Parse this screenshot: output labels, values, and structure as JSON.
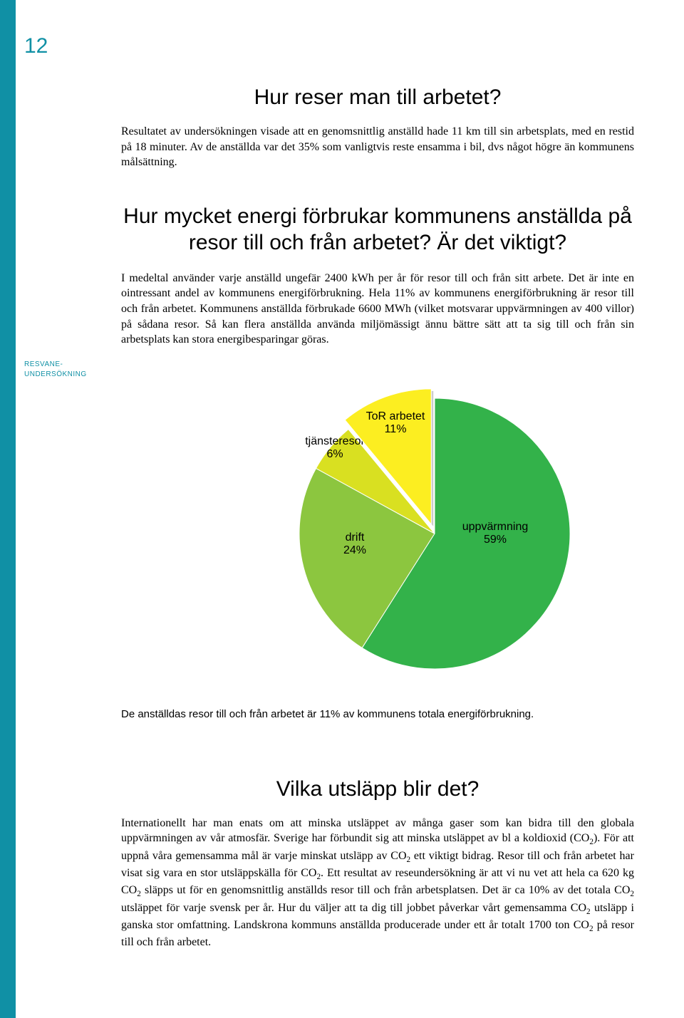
{
  "page_number": "12",
  "sidebar_label_line1": "RESVANE-",
  "sidebar_label_line2": "UNDERSÖKNING",
  "heading1": "Hur reser man till arbetet?",
  "para1": "Resultatet av undersökningen visade att en genomsnittlig anställd hade 11 km till sin arbetsplats, med en restid på 18 minuter. Av de anställda var det 35% som vanligtvis reste ensamma i bil, dvs något högre än kommunens målsättning.",
  "heading2": "Hur mycket energi förbrukar kommunens anställda på resor till och från arbetet? Är det viktigt?",
  "para2": "I medeltal använder varje anställd ungefär 2400 kWh per år för resor till och från sitt arbete. Det är inte en ointressant andel av kommunens energiförbrukning. Hela 11% av kommunens energiförbrukning är resor till och från arbetet. Kommunens anställda förbrukade 6600 MWh (vilket motsvarar uppvärmningen av 400 villor) på sådana resor. Så kan flera anställda använda miljömässigt ännu bättre sätt att ta sig till och från sin arbetsplats kan stora energibesparingar göras.",
  "pie_chart": {
    "type": "pie",
    "cx_offset": 0,
    "radius": 190,
    "background_color": "#ffffff",
    "slices": [
      {
        "label_line1": "uppvärmning",
        "label_line2": "59%",
        "value": 59,
        "color": "#33b24a",
        "exploded": false
      },
      {
        "label_line1": "drift",
        "label_line2": "24%",
        "value": 24,
        "color": "#8cc63f",
        "exploded": false
      },
      {
        "label_line1": "tjänsteresor",
        "label_line2": "6%",
        "value": 6,
        "color": "#d9e021",
        "exploded": false
      },
      {
        "label_line1": "ToR arbetet",
        "label_line2": "11%",
        "value": 11,
        "color": "#fcee21",
        "exploded": true,
        "explode_dist": 14
      }
    ],
    "label_fontsize": 16,
    "label_color": "#000000",
    "label_font": "Arial, Helvetica, sans-serif",
    "stroke_color": "#ffffff",
    "stroke_width": 1
  },
  "caption": "De anställdas resor till och från arbetet är 11% av kommunens totala energiförbrukning.",
  "heading3": "Vilka utsläpp blir det?",
  "para3_html": "Internationellt har man enats om att minska utsläppet av många gaser som kan bidra till den globala uppvärmningen av vår atmosfär. Sverige har förbundit sig att minska utsläppet av bl a koldioxid (CO<sub>2</sub>). För att uppnå våra gemensamma mål är varje minskat utsläpp av CO<sub>2</sub> ett viktigt bidrag. Resor till och från arbetet har visat sig vara en stor utsläppskälla för CO<sub>2</sub>. Ett resultat av reseundersökning är att vi nu vet att hela ca 620 kg CO<sub>2</sub> släpps ut för en genomsnittlig anställds resor till och från arbetsplatsen. Det är ca 10% av det totala CO<sub>2</sub> utsläppet för varje svensk per år. Hur du väljer att ta dig till jobbet påverkar vårt gemensamma CO<sub>2</sub> utsläpp i ganska stor omfattning. Landskrona kommuns anställda producerade under ett år totalt 1700 ton CO<sub>2</sub> på resor till och från arbetet."
}
